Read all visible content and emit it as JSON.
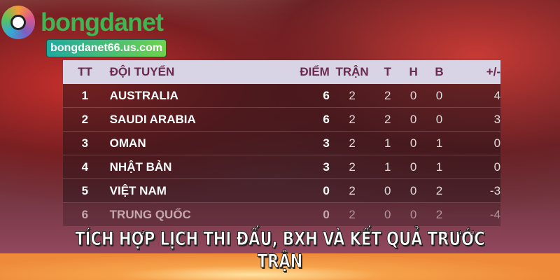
{
  "brand": {
    "name": "bongdanet",
    "url": "bongdanet66.us.com"
  },
  "table": {
    "headers": [
      "TT",
      "ĐỘI TUYỂN",
      "ĐIỂM",
      "TRẬN",
      "T",
      "H",
      "B",
      "+/-"
    ],
    "rows": [
      [
        "1",
        "AUSTRALIA",
        "6",
        "2",
        "2",
        "0",
        "0",
        "4"
      ],
      [
        "2",
        "SAUDI ARABIA",
        "6",
        "2",
        "2",
        "0",
        "0",
        "3"
      ],
      [
        "3",
        "OMAN",
        "3",
        "2",
        "1",
        "0",
        "1",
        "0"
      ],
      [
        "4",
        "NHẬT BẢN",
        "3",
        "2",
        "1",
        "0",
        "1",
        "0"
      ],
      [
        "5",
        "VIỆT NAM",
        "0",
        "2",
        "0",
        "0",
        "2",
        "-3"
      ],
      [
        "6",
        "TRUNG QUỐC",
        "0",
        "2",
        "0",
        "0",
        "2",
        "-4"
      ]
    ]
  },
  "caption": "TÍCH HỢP LỊCH THI ĐẤU, BXH VÀ KẾT QUẢ TRƯỚC TRẬN"
}
